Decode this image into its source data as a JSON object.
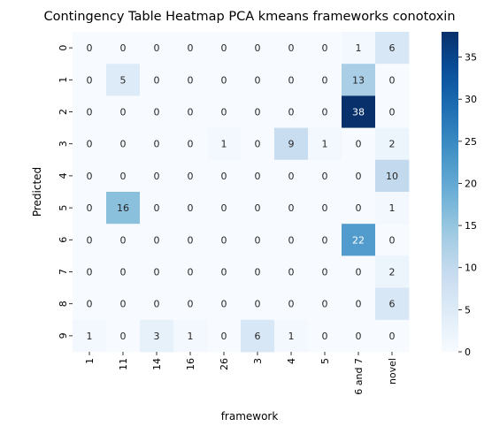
{
  "chart_data": {
    "type": "heatmap",
    "title": "Contingency Table Heatmap PCA kmeans frameworks conotoxin",
    "xlabel": "framework",
    "ylabel": "Predicted",
    "x_categories": [
      "1",
      "11",
      "14",
      "16",
      "26",
      "3",
      "4",
      "5",
      "6 and 7",
      "novel"
    ],
    "y_categories": [
      "0",
      "1",
      "2",
      "3",
      "4",
      "5",
      "6",
      "7",
      "8",
      "9"
    ],
    "values": [
      [
        0,
        0,
        0,
        0,
        0,
        0,
        0,
        0,
        1,
        6
      ],
      [
        0,
        5,
        0,
        0,
        0,
        0,
        0,
        0,
        13,
        0
      ],
      [
        0,
        0,
        0,
        0,
        0,
        0,
        0,
        0,
        38,
        0
      ],
      [
        0,
        0,
        0,
        0,
        1,
        0,
        9,
        1,
        0,
        2
      ],
      [
        0,
        0,
        0,
        0,
        0,
        0,
        0,
        0,
        0,
        10
      ],
      [
        0,
        16,
        0,
        0,
        0,
        0,
        0,
        0,
        0,
        1
      ],
      [
        0,
        0,
        0,
        0,
        0,
        0,
        0,
        0,
        22,
        0
      ],
      [
        0,
        0,
        0,
        0,
        0,
        0,
        0,
        0,
        0,
        2
      ],
      [
        0,
        0,
        0,
        0,
        0,
        0,
        0,
        0,
        0,
        6
      ],
      [
        1,
        0,
        3,
        1,
        0,
        6,
        1,
        0,
        0,
        0
      ]
    ],
    "colorbar": {
      "range": [
        0,
        38
      ],
      "ticks": [
        "0",
        "5",
        "10",
        "15",
        "20",
        "25",
        "30",
        "35"
      ],
      "colormap": "Blues"
    },
    "colors": {
      "low": "#f7fbff",
      "high": "#08306b"
    },
    "x_tick_rotation": "vertical",
    "y_tick_rotation": "vertical",
    "grid": false
  }
}
